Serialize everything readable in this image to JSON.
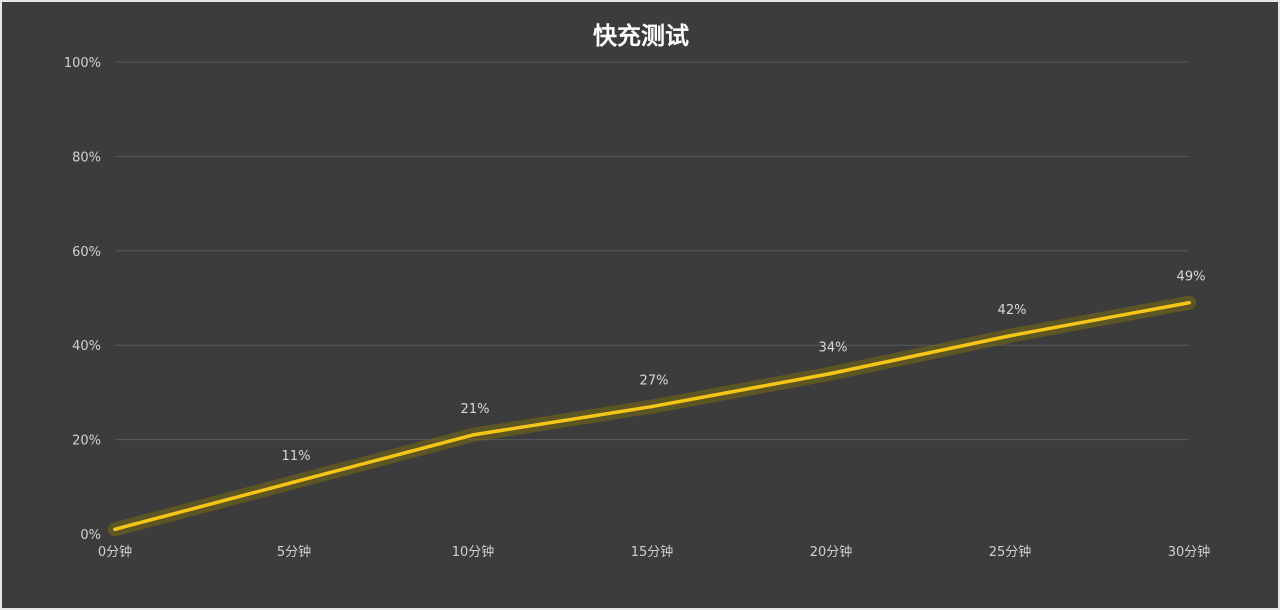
{
  "chart_data": {
    "type": "line",
    "title": "快充测试",
    "categories": [
      "0分钟",
      "5分钟",
      "10分钟",
      "15分钟",
      "20分钟",
      "25分钟",
      "30分钟"
    ],
    "series": [
      {
        "values": [
          1,
          11,
          21,
          27,
          34,
          42,
          49
        ]
      }
    ],
    "data_labels": [
      "",
      "11%",
      "21%",
      "27%",
      "34%",
      "42%",
      "49%"
    ],
    "y_ticks": [
      "0%",
      "20%",
      "40%",
      "60%",
      "80%",
      "100%"
    ],
    "ylim": [
      0,
      100
    ],
    "grid": true,
    "legend": "none",
    "colors": {
      "background": "#3c3c3c",
      "line": "#f5c518",
      "glow": "#7a6a10",
      "grid": "#5a5a5a"
    }
  }
}
